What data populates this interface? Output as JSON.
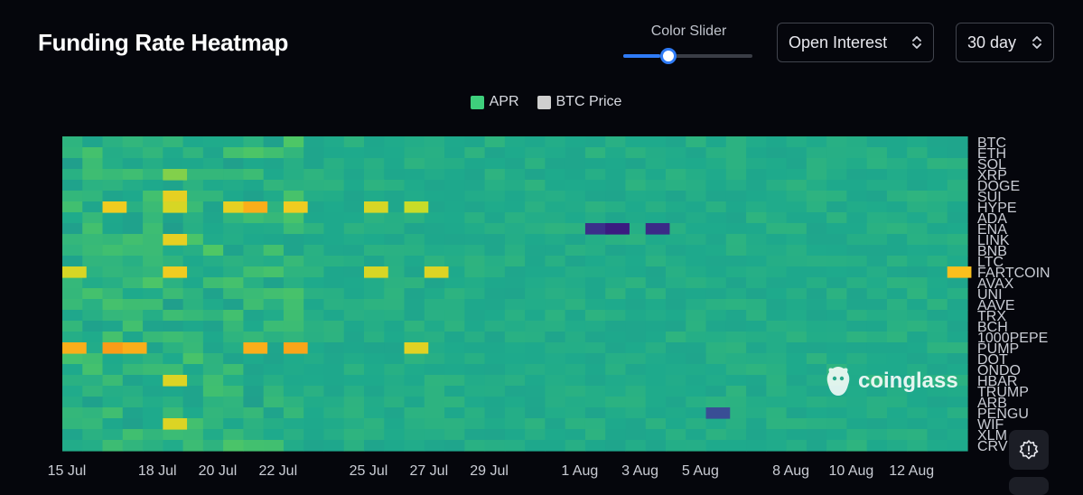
{
  "header": {
    "title": "Funding Rate Heatmap"
  },
  "controls": {
    "slider_label": "Color Slider",
    "slider_value": 0.29,
    "metric_select": "Open Interest",
    "range_select": "30 day"
  },
  "legend": [
    {
      "label": "APR",
      "color": "#3ecf7c"
    },
    {
      "label": "BTC Price",
      "color": "#cfcfcf"
    }
  ],
  "watermark": "coinglass",
  "chart_data": {
    "type": "heatmap",
    "x_ticks": [
      "15 Jul",
      "18 Jul",
      "20 Jul",
      "22 Jul",
      "25 Jul",
      "27 Jul",
      "29 Jul",
      "1 Aug",
      "3 Aug",
      "5 Aug",
      "8 Aug",
      "10 Aug",
      "12 Aug"
    ],
    "y_labels": [
      "BTC",
      "ETH",
      "SOL",
      "XRP",
      "DOGE",
      "SUI",
      "HYPE",
      "ADA",
      "ENA",
      "LINK",
      "BNB",
      "LTC",
      "FARTCOIN",
      "AVAX",
      "UNI",
      "AAVE",
      "TRX",
      "BCH",
      "1000PEPE",
      "PUMP",
      "DOT",
      "ONDO",
      "HBAR",
      "TRUMP",
      "ARB",
      "PENGU",
      "WIF",
      "XLM",
      "CRV"
    ],
    "grid": false,
    "series": [
      {
        "name": "APR",
        "values": []
      },
      {
        "name": "BTC Price",
        "values": []
      }
    ],
    "cells": [
      {
        "row": "XRP",
        "x": "18 Jul",
        "v": 0.75
      },
      {
        "row": "SUI",
        "x": "18 Jul",
        "v": 0.88
      },
      {
        "row": "HYPE",
        "x": "16 Jul",
        "v": 0.9
      },
      {
        "row": "HYPE",
        "x": "18 Jul",
        "v": 0.85
      },
      {
        "row": "HYPE",
        "x": "20 Jul",
        "v": 0.88
      },
      {
        "row": "HYPE",
        "x": "21 Jul",
        "v": 0.95
      },
      {
        "row": "HYPE",
        "x": "22 Jul",
        "v": 0.9
      },
      {
        "row": "HYPE",
        "x": "25 Jul",
        "v": 0.85
      },
      {
        "row": "HYPE",
        "x": "26 Jul",
        "v": 0.82
      },
      {
        "row": "LINK",
        "x": "18 Jul",
        "v": 0.88
      },
      {
        "row": "FARTCOIN",
        "x": "15 Jul",
        "v": 0.85
      },
      {
        "row": "FARTCOIN",
        "x": "18 Jul",
        "v": 0.9
      },
      {
        "row": "FARTCOIN",
        "x": "25 Jul",
        "v": 0.85
      },
      {
        "row": "FARTCOIN",
        "x": "27 Jul",
        "v": 0.86
      },
      {
        "row": "FARTCOIN",
        "x": "13 Aug",
        "v": 0.93
      },
      {
        "row": "PUMP",
        "x": "15 Jul",
        "v": 0.95
      },
      {
        "row": "PUMP",
        "x": "16 Jul",
        "v": 0.97
      },
      {
        "row": "PUMP",
        "x": "17 Jul",
        "v": 0.95
      },
      {
        "row": "PUMP",
        "x": "21 Jul",
        "v": 0.95
      },
      {
        "row": "PUMP",
        "x": "22 Jul",
        "v": 0.96
      },
      {
        "row": "PUMP",
        "x": "26 Jul",
        "v": 0.87
      },
      {
        "row": "HBAR",
        "x": "18 Jul",
        "v": 0.86
      },
      {
        "row": "WIF",
        "x": "18 Jul",
        "v": 0.86
      },
      {
        "row": "ENA",
        "x": "1 Aug",
        "v": 0.12
      },
      {
        "row": "ENA",
        "x": "2 Aug",
        "v": 0.05
      },
      {
        "row": "ENA",
        "x": "3 Aug",
        "v": 0.1
      },
      {
        "row": "PENGU",
        "x": "5 Aug",
        "v": 0.22
      }
    ]
  }
}
